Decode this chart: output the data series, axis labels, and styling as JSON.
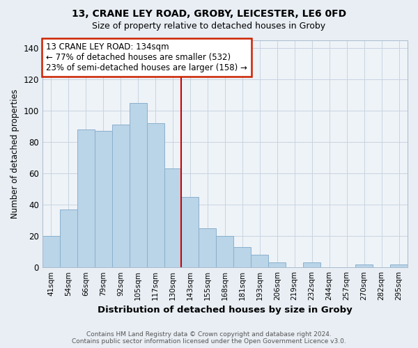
{
  "title1": "13, CRANE LEY ROAD, GROBY, LEICESTER, LE6 0FD",
  "title2": "Size of property relative to detached houses in Groby",
  "xlabel": "Distribution of detached houses by size in Groby",
  "ylabel": "Number of detached properties",
  "bar_labels": [
    "41sqm",
    "54sqm",
    "66sqm",
    "79sqm",
    "92sqm",
    "105sqm",
    "117sqm",
    "130sqm",
    "143sqm",
    "155sqm",
    "168sqm",
    "181sqm",
    "193sqm",
    "206sqm",
    "219sqm",
    "232sqm",
    "244sqm",
    "257sqm",
    "270sqm",
    "282sqm",
    "295sqm"
  ],
  "bar_heights": [
    20,
    37,
    88,
    87,
    91,
    105,
    92,
    63,
    45,
    25,
    20,
    13,
    8,
    3,
    0,
    3,
    0,
    0,
    2,
    0,
    2
  ],
  "bar_color": "#bad4e8",
  "bar_edge_color": "#8ab0cc",
  "vline_x_idx": 7.5,
  "vline_color": "#cc0000",
  "annotation_box_text": "13 CRANE LEY ROAD: 134sqm\n← 77% of detached houses are smaller (532)\n23% of semi-detached houses are larger (158) →",
  "annotation_box_color": "#ffffff",
  "annotation_box_edge_color": "#cc2200",
  "ylim": [
    0,
    145
  ],
  "yticks": [
    0,
    20,
    40,
    60,
    80,
    100,
    120,
    140
  ],
  "footer": "Contains HM Land Registry data © Crown copyright and database right 2024.\nContains public sector information licensed under the Open Government Licence v3.0.",
  "bg_color": "#e8eef4",
  "plot_bg_color": "#eef3f8",
  "grid_color": "#c8d4e0"
}
